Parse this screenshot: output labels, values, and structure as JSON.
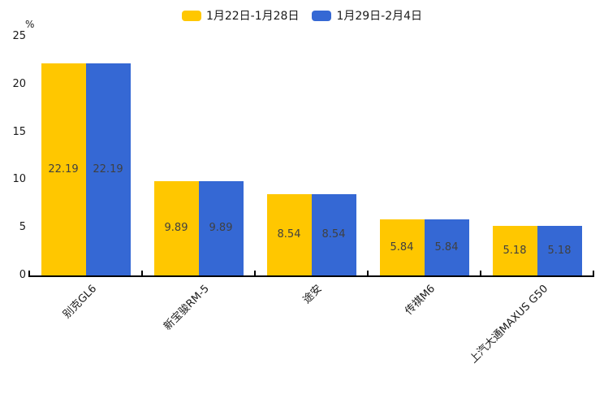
{
  "legend": {
    "items": [
      {
        "label": "1月22日-1月28日",
        "color": "#FFC700"
      },
      {
        "label": "1月29日-2月4日",
        "color": "#3568D4"
      }
    ]
  },
  "chart_data": {
    "type": "bar",
    "title": "",
    "categories": [
      "别克GL6",
      "新宝骏RM-5",
      "途安",
      "传祺M6",
      "上汽大通MAXUS G50"
    ],
    "series": [
      {
        "name": "1月22日-1月28日",
        "color": "#FFC700",
        "values": [
          22.19,
          9.89,
          8.54,
          5.84,
          5.18
        ]
      },
      {
        "name": "1月29日-2月4日",
        "color": "#3568D4",
        "values": [
          22.19,
          9.89,
          8.54,
          5.84,
          5.18
        ]
      }
    ],
    "xlabel": "",
    "ylabel": "%",
    "yticks": [
      0,
      5,
      10,
      15,
      20,
      25
    ],
    "ylim": [
      0,
      25
    ],
    "grid": false,
    "legend_position": "top-center",
    "bar_label_decimals": 2,
    "bar_label_color": "#404040",
    "axis_color": "#000000"
  }
}
